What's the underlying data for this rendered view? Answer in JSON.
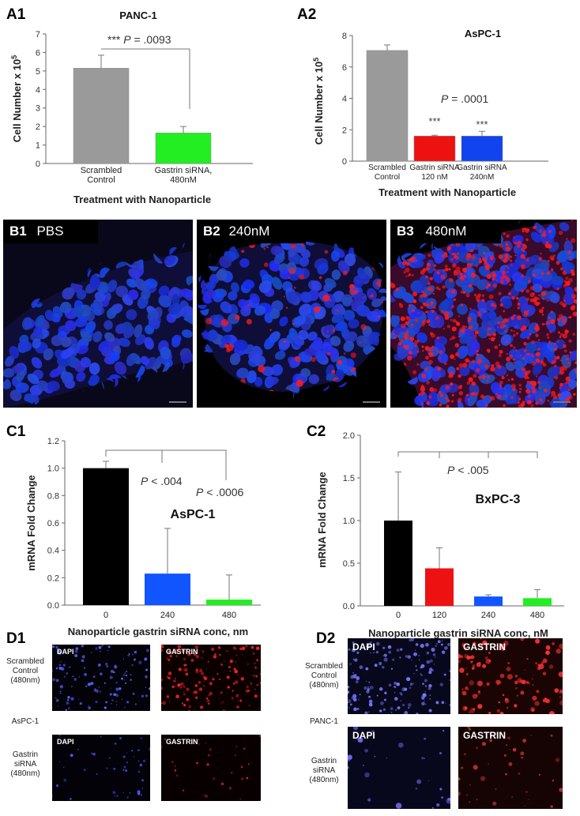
{
  "panels": {
    "A1": "A1",
    "A2": "A2",
    "B1": "B1",
    "B2": "B2",
    "B3": "B3",
    "C1": "C1",
    "C2": "C2",
    "D1": "D1",
    "D2": "D2"
  },
  "chart_data": [
    {
      "id": "A1",
      "type": "bar",
      "title": "PANC-1",
      "ylabel": "Cell Number x 10^5",
      "xlabel": "Treatment with Nanoparticle",
      "categories": [
        "Scrambled Control",
        "Gastrin siRNA, 480nM"
      ],
      "category_lines": [
        [
          "Scrambled",
          "Control"
        ],
        [
          "Gastrin siRNA,",
          "480nM"
        ]
      ],
      "values": [
        5.15,
        1.65
      ],
      "errors": [
        0.7,
        0.35
      ],
      "colors": [
        "#9a9a9a",
        "#22ee22"
      ],
      "ylim": [
        0,
        7
      ],
      "yticks": [
        0,
        1,
        2,
        3,
        4,
        5,
        6,
        7
      ],
      "annotation": "*** P = .0093"
    },
    {
      "id": "A2",
      "type": "bar",
      "title": "AsPC-1",
      "ylabel": "Cell Number x 10^5",
      "xlabel": "Treatment with Nanoparticle",
      "categories": [
        "Scrambled Control",
        "Gastrin siRNA 120 nM",
        "Gastrin siRNA 240nM"
      ],
      "category_lines": [
        [
          "Scrambled",
          "Control"
        ],
        [
          "Gastrin siRNA",
          "120 nM"
        ],
        [
          "Gastrin siRNA",
          "240nM"
        ]
      ],
      "values": [
        7.05,
        1.6,
        1.6
      ],
      "errors": [
        0.35,
        0.05,
        0.3
      ],
      "colors": [
        "#9a9a9a",
        "#ee1111",
        "#1144ee"
      ],
      "ylim": [
        0,
        8
      ],
      "yticks": [
        0,
        2,
        4,
        6,
        8
      ],
      "annotation": "P = .0001",
      "stars": [
        "",
        "***",
        "***"
      ]
    },
    {
      "id": "C1",
      "type": "bar",
      "title": "AsPC-1",
      "ylabel": "mRNA Fold Change",
      "xlabel": "Nanoparticle gastrin siRNA conc, nm",
      "categories": [
        "0",
        "240",
        "480"
      ],
      "values": [
        1.0,
        0.23,
        0.04
      ],
      "errors": [
        0.05,
        0.33,
        0.18
      ],
      "colors": [
        "#000000",
        "#1155ff",
        "#22ee22"
      ],
      "ylim": [
        0,
        1.2
      ],
      "yticks": [
        0.0,
        0.2,
        0.4,
        0.6,
        0.8,
        1.0,
        1.2
      ],
      "annotations": [
        "P < .004",
        "P < .0006"
      ]
    },
    {
      "id": "C2",
      "type": "bar",
      "title": "BxPC-3",
      "ylabel": "mRNA Fold Change",
      "xlabel": "Nanoparticle gastrin siRNA conc, nM",
      "categories": [
        "0",
        "120",
        "240",
        "480"
      ],
      "values": [
        1.0,
        0.44,
        0.11,
        0.09
      ],
      "errors": [
        0.57,
        0.24,
        0.02,
        0.1
      ],
      "colors": [
        "#000000",
        "#ee1111",
        "#1155ff",
        "#22ee22"
      ],
      "ylim": [
        0,
        2.0
      ],
      "yticks": [
        0.0,
        0.5,
        1.0,
        1.5,
        2.0
      ],
      "annotation": "P < .005"
    }
  ],
  "micrographs": {
    "B1": "PBS",
    "B2": "240nM",
    "B3": "480nM"
  },
  "fluorescence": {
    "D1": {
      "row1_label": "Scrambled\nControl\n(480nm)",
      "cell_line": "AsPC-1",
      "row2_label": "Gastrin\nsiRNA\n(480nm)",
      "dapi": "DAPI",
      "gastrin": "GASTRIN"
    },
    "D2": {
      "row1_label": "Scrambled\nControl\n(480nm)",
      "cell_line": "PANC-1",
      "row2_label": "Gastrin\nsiRNA\n(480nm)",
      "dapi": "DAPI",
      "gastrin": "GASTRIN"
    }
  }
}
